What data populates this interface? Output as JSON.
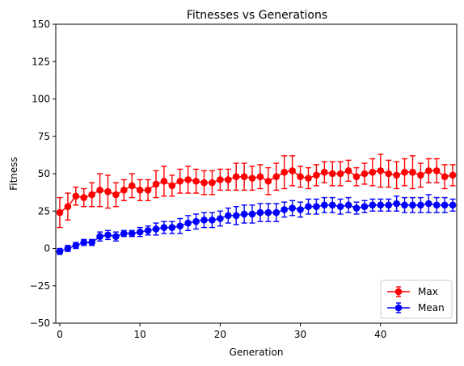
{
  "chart_data": {
    "type": "line",
    "title": "Fitnesses vs Generations",
    "xlabel": "Generation",
    "ylabel": "Fitness",
    "xlim": [
      -0.5,
      49.5
    ],
    "ylim": [
      -50,
      150
    ],
    "xticks": [
      0,
      10,
      20,
      30,
      40
    ],
    "yticks": [
      -50,
      -25,
      0,
      25,
      50,
      75,
      100,
      125,
      150
    ],
    "grid": false,
    "legend": "lower-right",
    "x": [
      0,
      1,
      2,
      3,
      4,
      5,
      6,
      7,
      8,
      9,
      10,
      11,
      12,
      13,
      14,
      15,
      16,
      17,
      18,
      19,
      20,
      21,
      22,
      23,
      24,
      25,
      26,
      27,
      28,
      29,
      30,
      31,
      32,
      33,
      34,
      35,
      36,
      37,
      38,
      39,
      40,
      41,
      42,
      43,
      44,
      45,
      46,
      47,
      48,
      49
    ],
    "series": [
      {
        "name": "Max",
        "color": "#ff0000",
        "values": [
          24,
          28,
          35,
          34,
          36,
          39,
          38,
          36,
          39,
          42,
          39,
          39,
          43,
          45,
          42,
          45,
          46,
          45,
          44,
          44,
          46,
          46,
          48,
          48,
          47,
          48,
          45,
          48,
          51,
          52,
          48,
          47,
          49,
          51,
          50,
          50,
          52,
          48,
          50,
          51,
          52,
          50,
          49,
          51,
          51,
          49,
          52,
          52,
          48,
          49
        ],
        "errors": [
          10,
          9,
          6,
          6,
          8,
          11,
          11,
          8,
          7,
          8,
          7,
          7,
          9,
          10,
          7,
          8,
          9,
          8,
          8,
          8,
          7,
          7,
          9,
          9,
          8,
          8,
          9,
          9,
          11,
          10,
          7,
          7,
          7,
          7,
          8,
          8,
          7,
          6,
          7,
          9,
          11,
          9,
          9,
          9,
          11,
          8,
          8,
          8,
          8,
          7
        ]
      },
      {
        "name": "Mean",
        "color": "#0000ff",
        "values": [
          -2,
          0,
          2,
          4,
          4,
          8,
          9,
          8,
          10,
          10,
          11,
          12,
          13,
          14,
          14,
          15,
          17,
          18,
          19,
          19,
          20,
          22,
          22,
          23,
          23,
          24,
          24,
          24,
          26,
          27,
          26,
          28,
          28,
          29,
          29,
          28,
          29,
          27,
          28,
          29,
          29,
          29,
          30,
          29,
          29,
          29,
          30,
          29,
          29,
          29
        ],
        "errors": [
          2,
          2,
          2,
          2,
          2,
          3,
          3,
          3,
          2,
          2,
          3,
          3,
          4,
          4,
          4,
          5,
          5,
          5,
          5,
          5,
          5,
          5,
          6,
          6,
          6,
          6,
          6,
          6,
          5,
          5,
          5,
          5,
          5,
          5,
          5,
          5,
          5,
          4,
          4,
          4,
          4,
          4,
          5,
          5,
          5,
          5,
          6,
          5,
          5,
          4
        ]
      }
    ]
  }
}
